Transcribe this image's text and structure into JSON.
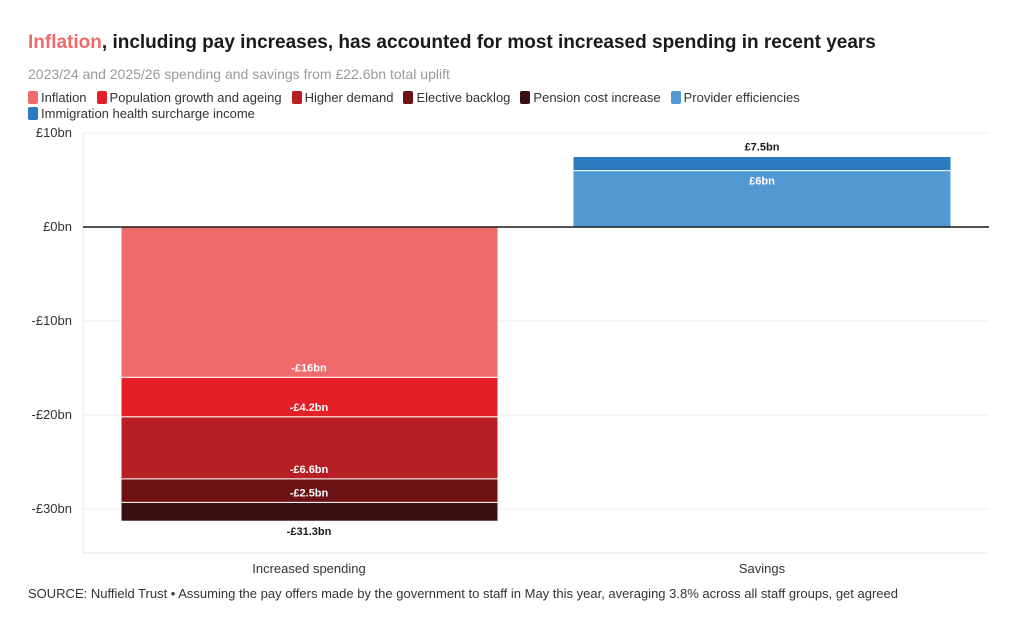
{
  "header": {
    "title_highlight": "Inflation",
    "title_rest": ", including pay increases, has accounted for most increased spending in recent years",
    "subtitle": "2023/24 and 2025/26 spending and savings from £22.6bn total uplift"
  },
  "legend": [
    {
      "label": "Inflation",
      "color": "#ef6b6b"
    },
    {
      "label": "Population growth and ageing",
      "color": "#e41f26"
    },
    {
      "label": "Higher demand",
      "color": "#b71f24"
    },
    {
      "label": "Elective backlog",
      "color": "#6e1114"
    },
    {
      "label": "Pension cost increase",
      "color": "#3a1011"
    },
    {
      "label": "Provider efficiencies",
      "color": "#5298d3"
    },
    {
      "label": "Immigration health surcharge income",
      "color": "#2a7bc0"
    }
  ],
  "footer": "SOURCE: Nuffield Trust • Assuming the pay offers made by the government to staff in May this year, averaging 3.8% across all staff groups, get agreed",
  "chart_data": {
    "type": "bar",
    "stacked": true,
    "title": "Inflation, including pay increases, has accounted for most increased spending in recent years",
    "subtitle": "2023/24 and 2025/26 spending and savings from £22.6bn total uplift",
    "categories": [
      "Increased spending",
      "Savings"
    ],
    "ylim": [
      -35,
      10
    ],
    "yticks": [
      10,
      0,
      -10,
      -20,
      -30
    ],
    "ytick_labels": [
      "£10bn",
      "£0bn",
      "-£10bn",
      "-£20bn",
      "-£30bn"
    ],
    "grid": true,
    "legend_position": "top-left",
    "series": [
      {
        "name": "Inflation",
        "color": "#ef6b6b",
        "values": [
          -16,
          0
        ],
        "label": "-£16bn"
      },
      {
        "name": "Population growth and ageing",
        "color": "#e41f26",
        "values": [
          -4.2,
          0
        ],
        "label": "-£4.2bn"
      },
      {
        "name": "Higher demand",
        "color": "#b71f24",
        "values": [
          -6.6,
          0
        ],
        "label": "-£6.6bn"
      },
      {
        "name": "Elective backlog",
        "color": "#6e1114",
        "values": [
          -2.5,
          0
        ],
        "label": "-£2.5bn"
      },
      {
        "name": "Pension cost increase",
        "color": "#3a1011",
        "values": [
          -2.0,
          0
        ],
        "label": ""
      },
      {
        "name": "Provider efficiencies",
        "color": "#5298d3",
        "values": [
          0,
          6
        ],
        "label": "£6bn"
      },
      {
        "name": "Immigration health surcharge income",
        "color": "#2a7bc0",
        "values": [
          0,
          1.5
        ],
        "label": ""
      }
    ],
    "totals": [
      {
        "category": "Increased spending",
        "value": -31.3,
        "label": "-£31.3bn"
      },
      {
        "category": "Savings",
        "value": 7.5,
        "label": "£7.5bn"
      }
    ]
  }
}
